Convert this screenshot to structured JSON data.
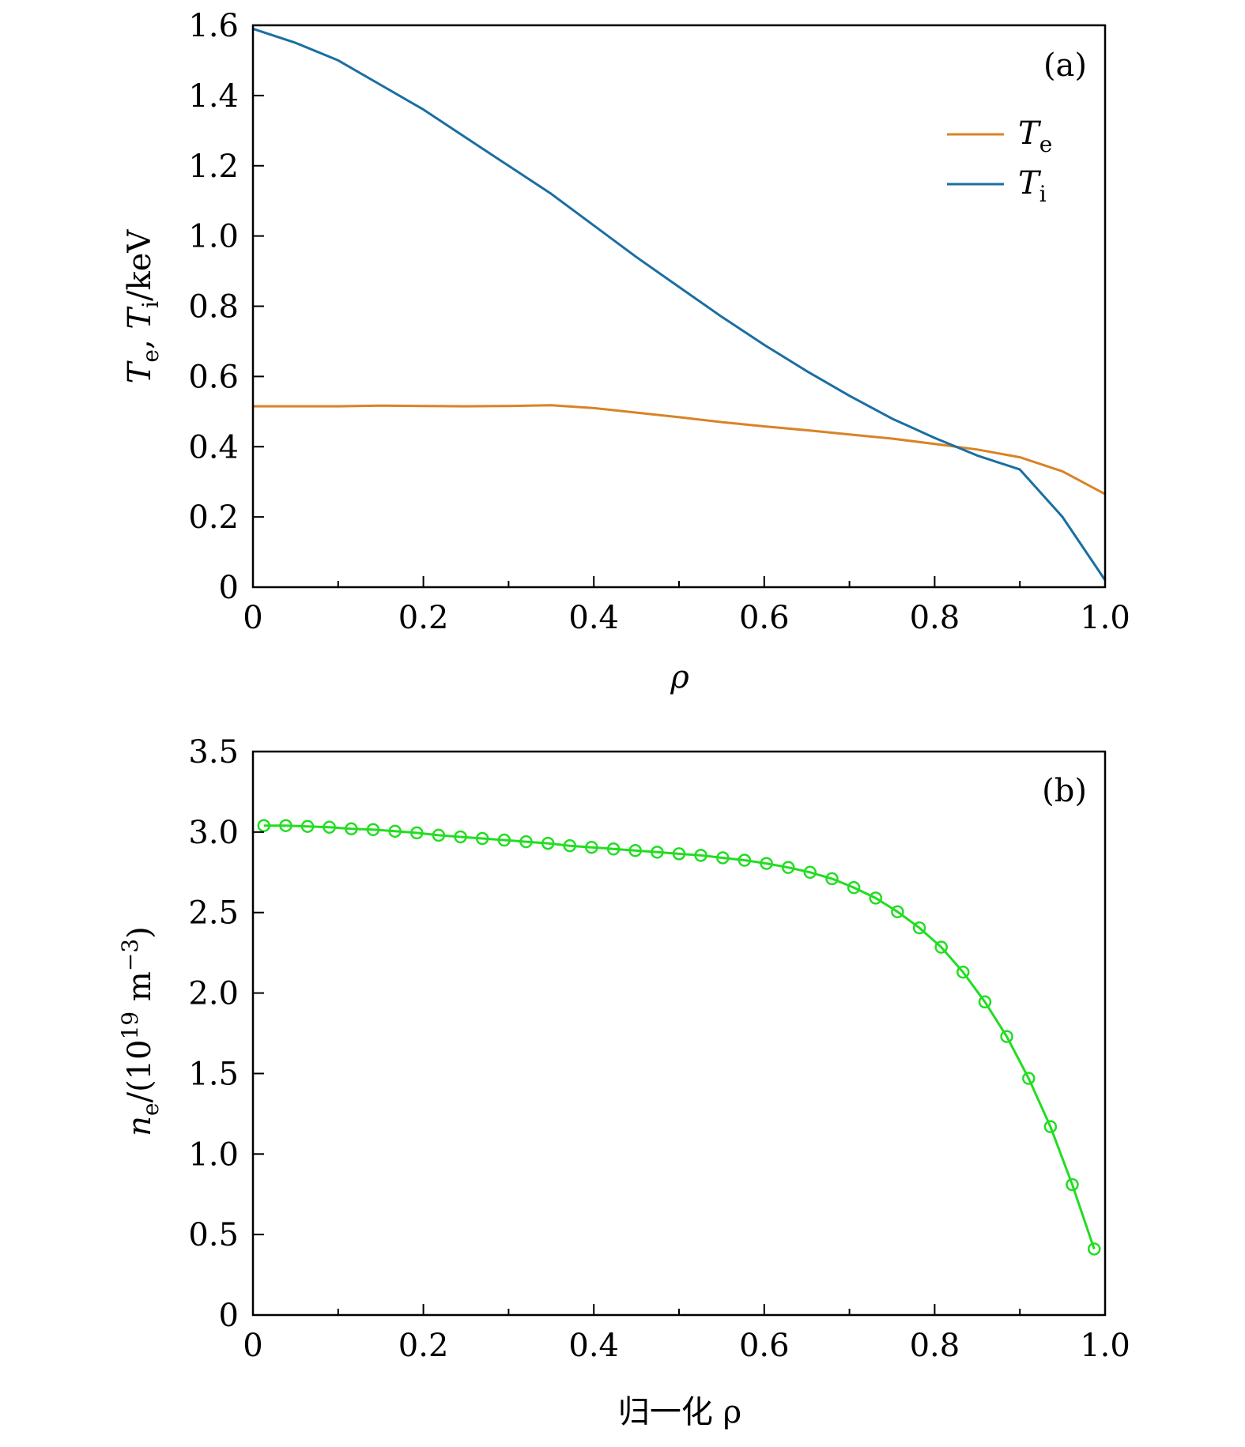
{
  "chart_data": [
    {
      "type": "line",
      "panel_label": "(a)",
      "xlabel": "ρ",
      "ylabel": "Te, Ti/keV",
      "ylabel_parts": {
        "t1": "T",
        "s1": "e",
        "sep": ", ",
        "t2": "T",
        "s2": "i",
        "unit": "/keV"
      },
      "xlim": [
        0,
        1.0
      ],
      "ylim": [
        0,
        1.6
      ],
      "xticks": [
        "0",
        "0.2",
        "0.4",
        "0.6",
        "0.8",
        "1.0"
      ],
      "yticks": [
        "0",
        "0.2",
        "0.4",
        "0.6",
        "0.8",
        "1.0",
        "1.2",
        "1.4",
        "1.6"
      ],
      "grid": false,
      "legend_position": "top-right",
      "series": [
        {
          "name": "Te",
          "name_main": "T",
          "name_sub": "e",
          "color": "#d98326",
          "x": [
            0,
            0.05,
            0.1,
            0.15,
            0.2,
            0.25,
            0.3,
            0.35,
            0.4,
            0.45,
            0.5,
            0.55,
            0.6,
            0.65,
            0.7,
            0.75,
            0.8,
            0.85,
            0.9,
            0.95,
            1.0
          ],
          "y": [
            0.515,
            0.515,
            0.515,
            0.517,
            0.516,
            0.515,
            0.516,
            0.518,
            0.51,
            0.497,
            0.484,
            0.47,
            0.458,
            0.447,
            0.435,
            0.423,
            0.408,
            0.392,
            0.37,
            0.33,
            0.265
          ]
        },
        {
          "name": "Ti",
          "name_main": "T",
          "name_sub": "i",
          "color": "#1a6ea2",
          "x": [
            0,
            0.05,
            0.1,
            0.15,
            0.2,
            0.25,
            0.3,
            0.35,
            0.4,
            0.45,
            0.5,
            0.55,
            0.6,
            0.65,
            0.7,
            0.75,
            0.8,
            0.85,
            0.9,
            0.95,
            1.0
          ],
          "y": [
            1.59,
            1.55,
            1.5,
            1.43,
            1.36,
            1.28,
            1.2,
            1.12,
            1.03,
            0.94,
            0.855,
            0.77,
            0.69,
            0.615,
            0.545,
            0.48,
            0.425,
            0.375,
            0.335,
            0.2,
            0.02
          ]
        }
      ]
    },
    {
      "type": "line",
      "panel_label": "(b)",
      "xlabel": "归一化 ρ",
      "ylabel": "ne/(10^19 m^-3)",
      "ylabel_parts": {
        "t1": "n",
        "s1": "e",
        "mid": "/(10",
        "sup1": "19",
        "unit": " m",
        "sup2": "−3",
        "close": ")"
      },
      "xlim": [
        0,
        1.0
      ],
      "ylim": [
        0,
        3.5
      ],
      "xticks": [
        "0",
        "0.2",
        "0.4",
        "0.6",
        "0.8",
        "1.0"
      ],
      "yticks": [
        "0",
        "0.5",
        "1.0",
        "1.5",
        "2.0",
        "2.5",
        "3.0",
        "3.5"
      ],
      "grid": false,
      "series": [
        {
          "color": "#22dd22",
          "marker": "circle",
          "x": [
            0.0128,
            0.0385,
            0.0641,
            0.0897,
            0.1154,
            0.141,
            0.1667,
            0.1923,
            0.2179,
            0.2436,
            0.2692,
            0.2949,
            0.3205,
            0.3462,
            0.3718,
            0.3974,
            0.4231,
            0.4487,
            0.4744,
            0.5,
            0.5256,
            0.5513,
            0.5769,
            0.6026,
            0.6282,
            0.6538,
            0.6795,
            0.7051,
            0.7308,
            0.7564,
            0.7821,
            0.8077,
            0.8333,
            0.859,
            0.8846,
            0.9103,
            0.9359,
            0.9615,
            0.9872
          ],
          "y": [
            3.04,
            3.04,
            3.035,
            3.03,
            3.02,
            3.015,
            3.005,
            2.995,
            2.98,
            2.97,
            2.96,
            2.95,
            2.94,
            2.93,
            2.915,
            2.905,
            2.895,
            2.885,
            2.875,
            2.865,
            2.855,
            2.84,
            2.825,
            2.805,
            2.78,
            2.75,
            2.71,
            2.655,
            2.59,
            2.505,
            2.405,
            2.285,
            2.13,
            1.945,
            1.73,
            1.47,
            1.17,
            0.81,
            0.41
          ]
        }
      ]
    }
  ]
}
